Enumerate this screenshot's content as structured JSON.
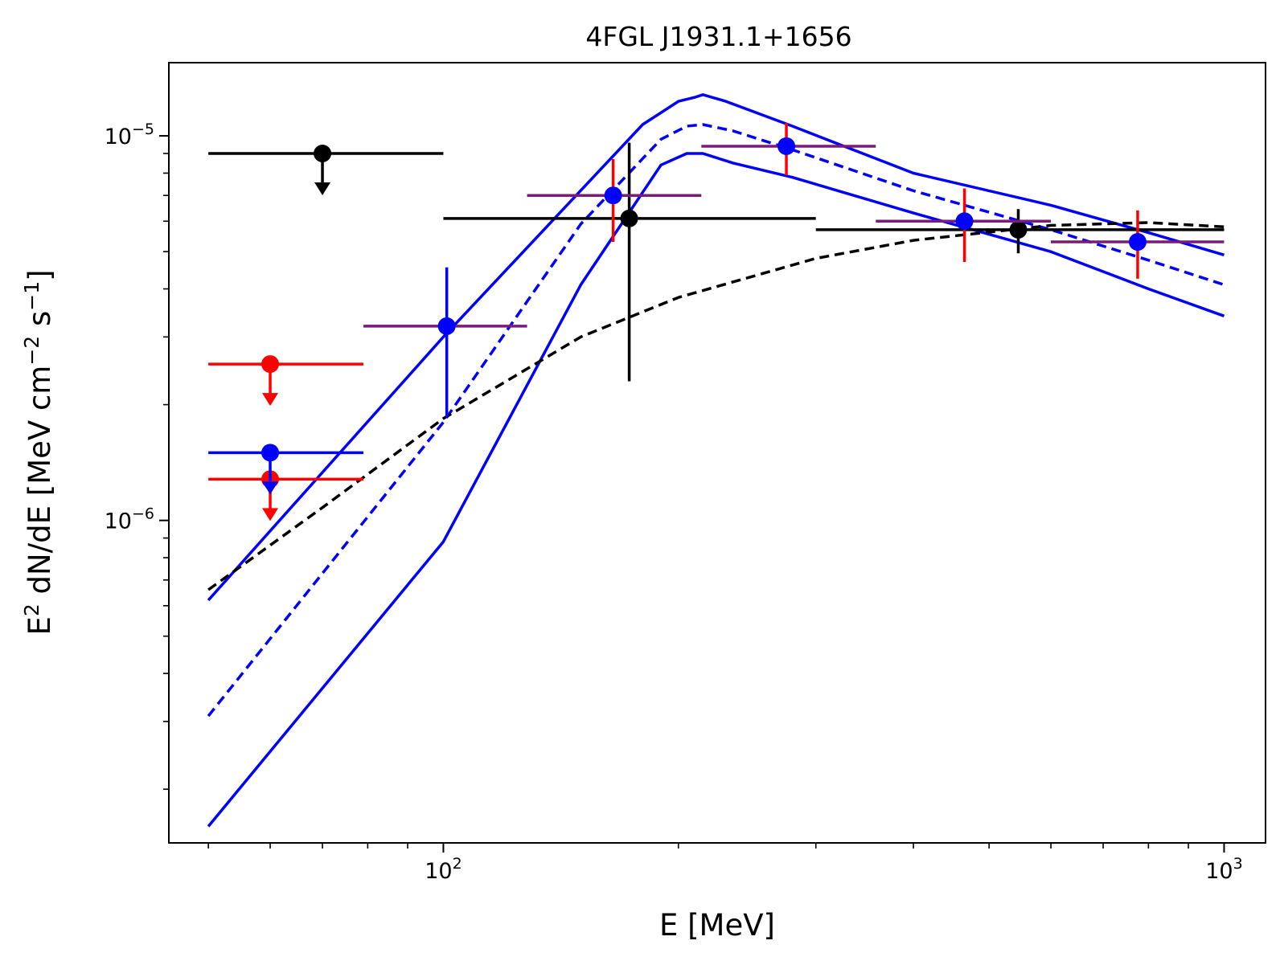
{
  "chart_data": {
    "type": "scatter",
    "title": "4FGL J1931.1+1656",
    "xlabel": "E [MeV]",
    "ylabel": {
      "prefix": "E",
      "prefix_sup": "2",
      "mid": " dN/dE [MeV cm",
      "mid_sup": "−2",
      "mid2": " s",
      "mid2_sup": "−1",
      "suffix": "]"
    },
    "xscale": "log",
    "yscale": "log",
    "xlim": [
      44.5,
      1130
    ],
    "ylim": [
      1.45e-07,
      1.55e-05
    ],
    "x_ticks": [
      {
        "value": 100,
        "base": "10",
        "exp": "2"
      },
      {
        "value": 1000,
        "base": "10",
        "exp": "3"
      }
    ],
    "y_ticks": [
      {
        "value": 1e-06,
        "base": "10",
        "exp": "−6"
      },
      {
        "value": 1e-05,
        "base": "10",
        "exp": "−5"
      }
    ],
    "series": [
      {
        "name": "blue model",
        "style": "solid",
        "color": "#0000ff",
        "x": [
          50,
          100,
          180,
          200,
          210,
          215,
          230,
          280,
          400,
          600,
          800,
          1000
        ],
        "y": [
          6.2e-07,
          3e-06,
          1.07e-05,
          1.23e-05,
          1.26e-05,
          1.28e-05,
          1.23e-05,
          1.06e-05,
          8e-06,
          6.6e-06,
          5.6e-06,
          4.9e-06
        ]
      },
      {
        "name": "blue model",
        "style": "dashed",
        "color": "#0000ff",
        "x": [
          50,
          100,
          150,
          190,
          205,
          215,
          235,
          280,
          400,
          600,
          800,
          1000
        ],
        "y": [
          3.1e-07,
          1.8e-06,
          5.9e-06,
          9.8e-06,
          1.06e-05,
          1.07e-05,
          1.03e-05,
          9.2e-06,
          7.2e-06,
          5.7e-06,
          4.75e-06,
          4.1e-06
        ]
      },
      {
        "name": "blue model",
        "style": "solid",
        "color": "#0000ff",
        "x": [
          50,
          100,
          150,
          190,
          205,
          215,
          235,
          280,
          400,
          600,
          800,
          1000
        ],
        "y": [
          1.6e-07,
          8.8e-07,
          4.1e-06,
          8.4e-06,
          9e-06,
          9e-06,
          8.5e-06,
          7.8e-06,
          6.3e-06,
          5e-06,
          4e-06,
          3.4e-06
        ]
      },
      {
        "name": "black model",
        "style": "dashed",
        "color": "#000000",
        "x": [
          50,
          70,
          100,
          150,
          200,
          300,
          400,
          600,
          800,
          1000
        ],
        "y": [
          6.6e-07,
          1.08e-06,
          1.84e-06,
          3e-06,
          3.8e-06,
          4.8e-06,
          5.35e-06,
          5.85e-06,
          5.95e-06,
          5.8e-06
        ]
      }
    ],
    "points": [
      {
        "color": "#000000",
        "x": 70,
        "y": 9e-06,
        "xlo": 50,
        "xhi": 100,
        "ul": true
      },
      {
        "color": "#000000",
        "x": 173,
        "y": 6.1e-06,
        "xlo": 100,
        "xhi": 300,
        "ylo": 2.3e-06,
        "yhi": 9.6e-06
      },
      {
        "color": "#000000",
        "x": 545,
        "y": 5.7e-06,
        "xlo": 300,
        "xhi": 1000,
        "ylo": 4.95e-06,
        "yhi": 6.45e-06
      },
      {
        "color": "#ff0000",
        "x": 60,
        "y": 2.55e-06,
        "xlo": 50,
        "xhi": 79,
        "ul": true
      },
      {
        "color": "#ff0000",
        "x": 60,
        "y": 1.28e-06,
        "xlo": 50,
        "xhi": 79,
        "ul": true
      },
      {
        "color": "#0000ff",
        "x": 60,
        "y": 1.5e-06,
        "xlo": 50,
        "xhi": 79,
        "ul": true
      },
      {
        "color": "#0000ff",
        "x": 101,
        "y": 3.2e-06,
        "xlo": 79,
        "xhi": 128,
        "ylo": 1.85e-06,
        "yhi": 4.55e-06,
        "err_color": "#0000ff",
        "bar_color": "#7a1a7a"
      },
      {
        "color": "#0000ff",
        "x": 165,
        "y": 7e-06,
        "xlo": 128,
        "xhi": 214,
        "ylo": 5.3e-06,
        "yhi": 8.7e-06,
        "err_color": "#ff0000",
        "bar_color": "#7a1a7a"
      },
      {
        "color": "#0000ff",
        "x": 275,
        "y": 9.4e-06,
        "xlo": 214,
        "xhi": 358,
        "ylo": 7.9e-06,
        "yhi": 1.08e-05,
        "err_color": "#ff0000",
        "bar_color": "#7a1a7a"
      },
      {
        "color": "#0000ff",
        "x": 465,
        "y": 6e-06,
        "xlo": 358,
        "xhi": 600,
        "ylo": 4.7e-06,
        "yhi": 7.3e-06,
        "err_color": "#ff0000",
        "bar_color": "#7a1a7a"
      },
      {
        "color": "#0000ff",
        "x": 775,
        "y": 5.3e-06,
        "xlo": 600,
        "xhi": 1000,
        "ylo": 4.25e-06,
        "yhi": 6.4e-06,
        "err_color": "#ff0000",
        "bar_color": "#7a1a7a"
      }
    ]
  }
}
